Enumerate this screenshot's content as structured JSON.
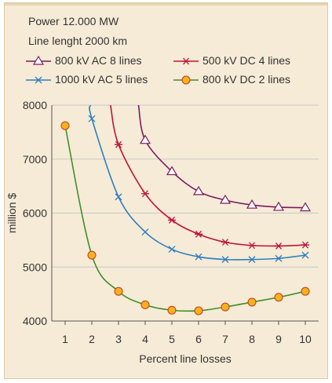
{
  "notes": {
    "power": "Power 12.000 MW",
    "length": "Line lenght 2000 km"
  },
  "chart_data": {
    "type": "line",
    "xlabel": "Percent line losses",
    "ylabel": "million $",
    "x": [
      1,
      2,
      3,
      4,
      5,
      6,
      7,
      8,
      9,
      10
    ],
    "xlim": [
      0.5,
      10.5
    ],
    "ylim": [
      4000,
      8000
    ],
    "yticks": [
      4000,
      5000,
      6000,
      7000,
      8000
    ],
    "grid": "horizontal",
    "legend_position": "top",
    "series": [
      {
        "name": "800 kV AC 8 lines",
        "marker": "triangle",
        "color": "#7a1a5e",
        "points": [
          [
            4.0,
            7350
          ],
          [
            5,
            6770
          ],
          [
            6,
            6400
          ],
          [
            7,
            6240
          ],
          [
            8,
            6150
          ],
          [
            9,
            6110
          ],
          [
            10,
            6100
          ]
        ],
        "curve_start": [
          3.75,
          8000
        ]
      },
      {
        "name": "500 kV DC 4 lines",
        "marker": "star",
        "color": "#c0123a",
        "points": [
          [
            3,
            7270
          ],
          [
            4,
            6360
          ],
          [
            5,
            5870
          ],
          [
            6,
            5610
          ],
          [
            7,
            5460
          ],
          [
            8,
            5400
          ],
          [
            9,
            5390
          ],
          [
            10,
            5410
          ]
        ],
        "curve_start": [
          2.7,
          8000
        ]
      },
      {
        "name": "1000 kV AC 5 lines",
        "marker": "x",
        "color": "#2d7fc1",
        "points": [
          [
            2,
            7750
          ],
          [
            3,
            6300
          ],
          [
            4,
            5650
          ],
          [
            5,
            5330
          ],
          [
            6,
            5190
          ],
          [
            7,
            5140
          ],
          [
            8,
            5140
          ],
          [
            9,
            5160
          ],
          [
            10,
            5220
          ]
        ],
        "curve_start": [
          1.95,
          8000
        ]
      },
      {
        "name": "800 kV DC 2 lines",
        "marker": "circle",
        "color": "#3f8f2a",
        "marker_fill": "#f5b21a",
        "points": [
          [
            1,
            7620
          ],
          [
            2,
            5220
          ],
          [
            3,
            4550
          ],
          [
            4,
            4300
          ],
          [
            5,
            4200
          ],
          [
            6,
            4190
          ],
          [
            7,
            4260
          ],
          [
            8,
            4350
          ],
          [
            9,
            4440
          ],
          [
            10,
            4550
          ]
        ]
      }
    ]
  }
}
